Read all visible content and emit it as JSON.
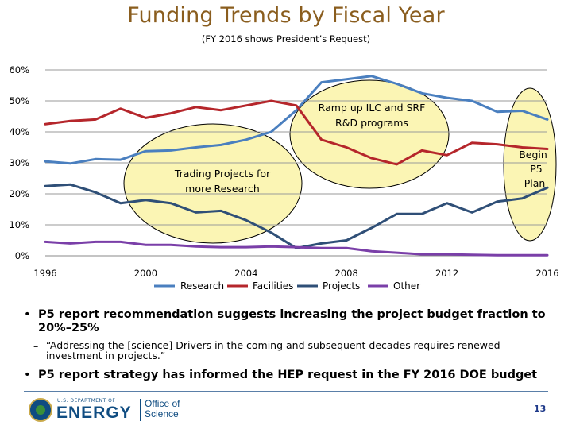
{
  "slide": {
    "title": "Funding Trends by Fiscal Year",
    "subtitle": "(FY 2016 shows President’s Request)",
    "page_number": "13"
  },
  "bullets": {
    "b1": "P5 report recommendation suggests increasing the project budget fraction to 20%–25%",
    "b2": "“Addressing the [science] Drivers in the coming and subsequent decades requires renewed investment in projects.”",
    "b3": "P5 report strategy has informed the HEP request in the FY 2016 DOE budget",
    "bullet_char": "•",
    "dash_char": "–"
  },
  "logo": {
    "dept_line": "U.S. DEPARTMENT OF",
    "dept_name": "ENERGY",
    "office_line1": "Office of",
    "office_line2": "Science"
  },
  "colors": {
    "research": "#4a7fbf",
    "facilities": "#b5262b",
    "projects": "#2f4f77",
    "other": "#7a3fa8",
    "highlight": "#fbf5b4",
    "title": "#8a5d1e"
  },
  "chart_data": {
    "type": "line",
    "x": [
      1996,
      1997,
      1998,
      1999,
      2000,
      2001,
      2002,
      2003,
      2004,
      2005,
      2006,
      2007,
      2008,
      2009,
      2010,
      2011,
      2012,
      2013,
      2014,
      2015,
      2016
    ],
    "series": [
      {
        "key": "research",
        "name": "Research",
        "values": [
          30.5,
          29.8,
          31.2,
          31.0,
          33.8,
          34.0,
          35.0,
          35.8,
          37.5,
          40.0,
          47.0,
          56.0,
          57.0,
          58.0,
          55.5,
          52.5,
          51.0,
          50.0,
          46.5,
          46.8,
          44.0
        ]
      },
      {
        "key": "facilities",
        "name": "Facilities",
        "values": [
          42.5,
          43.5,
          44.0,
          47.5,
          44.5,
          46.0,
          48.0,
          47.0,
          48.5,
          50.0,
          48.5,
          37.5,
          35.0,
          31.5,
          29.5,
          34.0,
          32.5,
          36.5,
          36.0,
          35.0,
          34.5
        ]
      },
      {
        "key": "projects",
        "name": "Projects",
        "values": [
          22.5,
          23.0,
          20.5,
          17.0,
          18.0,
          17.0,
          14.0,
          14.5,
          11.5,
          7.5,
          2.5,
          4.0,
          5.0,
          9.0,
          13.5,
          13.5,
          17.0,
          14.0,
          17.5,
          18.5,
          22.0
        ]
      },
      {
        "key": "other",
        "name": "Other",
        "values": [
          4.5,
          4.0,
          4.5,
          4.5,
          3.5,
          3.5,
          3.0,
          2.8,
          2.8,
          3.0,
          2.8,
          2.5,
          2.5,
          1.5,
          1.0,
          0.5,
          0.5,
          0.3,
          0.2,
          0.2,
          0.2
        ]
      }
    ],
    "y_ticks": [
      "0%",
      "10%",
      "20%",
      "30%",
      "40%",
      "50%",
      "60%"
    ],
    "x_ticks": [
      "1996",
      "2000",
      "2004",
      "2008",
      "2012",
      "2016"
    ],
    "ylim": [
      0,
      60
    ],
    "xlim": [
      1996,
      2016
    ],
    "grid": true,
    "legend": "bottom",
    "annotations": [
      {
        "text": "Ramp up ILC and SRF R&D programs",
        "line1": "Ramp up ILC and SRF",
        "line2": "R&D programs"
      },
      {
        "text": "Trading Projects for more Research",
        "line1": "Trading Projects for",
        "line2": "more Research"
      },
      {
        "text": "Begin P5 Plan",
        "line1": "Begin",
        "line2": "P5",
        "line3": "Plan"
      }
    ]
  }
}
